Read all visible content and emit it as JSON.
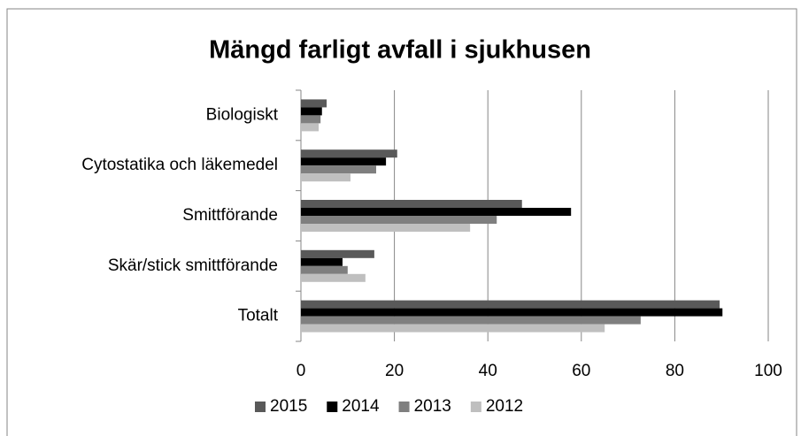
{
  "chart_data": {
    "type": "bar",
    "orientation": "horizontal",
    "title": "Mängd farligt avfall i sjukhusen",
    "categories": [
      "Biologiskt",
      "Cytostatika och läkemedel",
      "Smittförande",
      "Skär/stick smittförande",
      "Totalt"
    ],
    "series": [
      {
        "name": "2015",
        "color": "#595959",
        "values": [
          5.5,
          20.6,
          47.3,
          15.7,
          89.6
        ]
      },
      {
        "name": "2014",
        "color": "#000000",
        "values": [
          4.5,
          18.2,
          57.8,
          8.9,
          90.2
        ]
      },
      {
        "name": "2013",
        "color": "#7f7f7f",
        "values": [
          4.2,
          16.1,
          41.9,
          10.0,
          72.7
        ]
      },
      {
        "name": "2012",
        "color": "#bfbfbf",
        "values": [
          3.8,
          10.6,
          36.2,
          13.8,
          65.0
        ]
      }
    ],
    "xlim": [
      0,
      100
    ],
    "xticks": [
      0,
      20,
      40,
      60,
      80,
      100
    ],
    "grid": true,
    "legend": "bottom"
  }
}
